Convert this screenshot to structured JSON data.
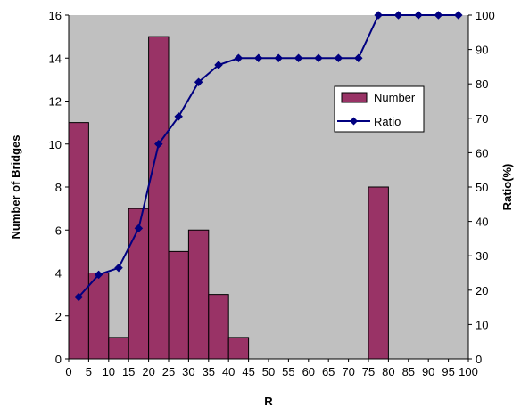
{
  "chart_data": {
    "type": "bar",
    "x_ticks": [
      0,
      5,
      10,
      15,
      20,
      25,
      30,
      35,
      40,
      45,
      50,
      55,
      60,
      65,
      70,
      75,
      80,
      85,
      90,
      95,
      100
    ],
    "bars": [
      {
        "x_start": 0,
        "x_end": 5,
        "value": 11
      },
      {
        "x_start": 5,
        "x_end": 10,
        "value": 4
      },
      {
        "x_start": 10,
        "x_end": 15,
        "value": 1
      },
      {
        "x_start": 15,
        "x_end": 20,
        "value": 7
      },
      {
        "x_start": 20,
        "x_end": 25,
        "value": 15
      },
      {
        "x_start": 25,
        "x_end": 30,
        "value": 5
      },
      {
        "x_start": 30,
        "x_end": 35,
        "value": 6
      },
      {
        "x_start": 35,
        "x_end": 40,
        "value": 3
      },
      {
        "x_start": 40,
        "x_end": 45,
        "value": 1
      },
      {
        "x_start": 75,
        "x_end": 80,
        "value": 8
      }
    ],
    "ratio_line": {
      "x": [
        2.5,
        7.5,
        12.5,
        17.5,
        22.5,
        27.5,
        32.5,
        37.5,
        42.5,
        47.5,
        52.5,
        57.5,
        62.5,
        67.5,
        72.5,
        77.5,
        82.5,
        87.5,
        92.5,
        97.5
      ],
      "y": [
        18,
        24.5,
        26.5,
        38,
        62.5,
        70.5,
        80.5,
        85.5,
        87.5,
        87.5,
        87.5,
        87.5,
        87.5,
        87.5,
        87.5,
        100,
        100,
        100,
        100,
        100
      ]
    },
    "legend": {
      "number_label": "Number",
      "ratio_label": "Ratio",
      "placement": "upper-right inside plot"
    },
    "xlabel": "R",
    "ylabel_left": "Number of Bridges",
    "ylabel_right": "Ratio(%)",
    "xlim": [
      0,
      100
    ],
    "ylim_left": [
      0,
      16
    ],
    "ylim_right": [
      0,
      100
    ],
    "yticks_left": [
      0,
      2,
      4,
      6,
      8,
      10,
      12,
      14,
      16
    ],
    "yticks_right": [
      0,
      10,
      20,
      30,
      40,
      50,
      60,
      70,
      80,
      90,
      100
    ],
    "grid": false,
    "colors": {
      "plot_background": "#c0c0c0",
      "bar_fill": "#993366",
      "bar_edge": "#000000",
      "line": "#000080"
    }
  }
}
